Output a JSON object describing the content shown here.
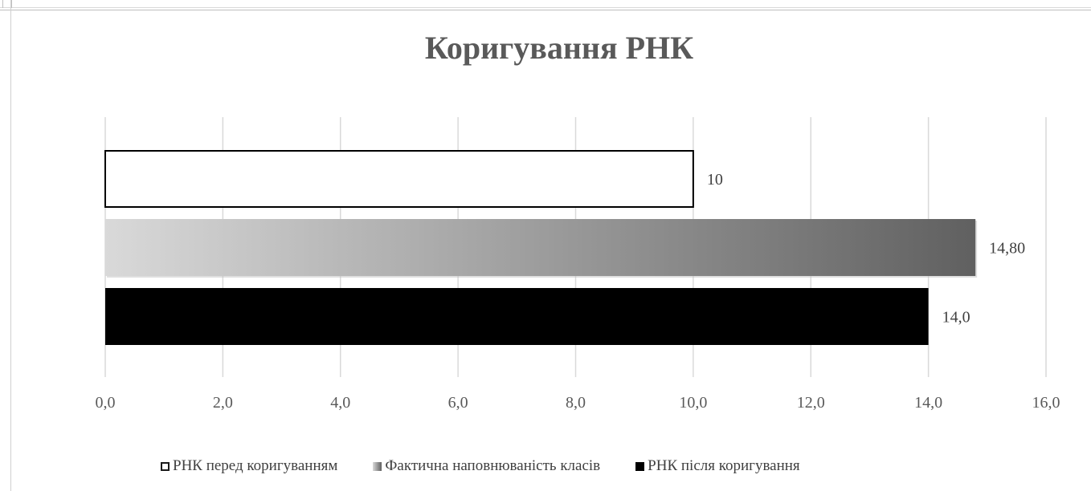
{
  "chart_data": {
    "type": "bar",
    "orientation": "horizontal",
    "title": "Коригування РНК",
    "xlim": [
      0,
      16
    ],
    "x_ticks": [
      "0,0",
      "2,0",
      "4,0",
      "6,0",
      "8,0",
      "10,0",
      "12,0",
      "14,0",
      "16,0"
    ],
    "grid": true,
    "legend_position": "bottom",
    "series": [
      {
        "name": "РНК перед коригуванням",
        "value": 10,
        "label": "10",
        "color": "#ffffff"
      },
      {
        "name": "Фактична наповнюваність класів",
        "value": 14.8,
        "label": "14,80",
        "color": "gradient-gray"
      },
      {
        "name": "РНК після коригування",
        "value": 14,
        "label": "14,0",
        "color": "#000000"
      }
    ]
  }
}
